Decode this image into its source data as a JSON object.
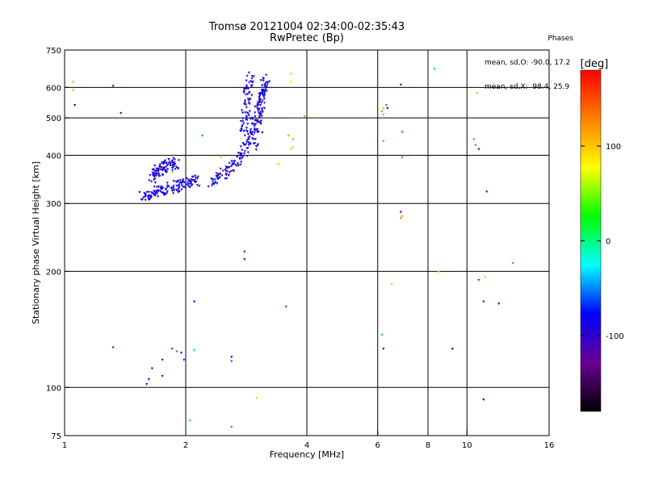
{
  "header": {
    "title": "Tromsø 20121004 02:34:00-02:35:43",
    "subtitle": "RwPretec (Bp)"
  },
  "phase_info": {
    "heading": "Phases",
    "line1": "mean, sd,O: -90.0, 17.2",
    "line2": "mean, sd,X:  98.4, 25.9"
  },
  "colorbar": {
    "label": "[deg]",
    "ticks": [
      {
        "value": 100,
        "label": "100"
      },
      {
        "value": 0,
        "label": "0"
      },
      {
        "value": -100,
        "label": "-100"
      }
    ],
    "range": [
      -180,
      180
    ],
    "stops": [
      "#000000",
      "#6a0090",
      "#0000ff",
      "#00ffff",
      "#00ff00",
      "#ffff00",
      "#ff8000",
      "#ff0000"
    ]
  },
  "chart_data": {
    "type": "scatter",
    "title": "Tromsø 20121004 02:34:00-02:35:43",
    "subtitle": "RwPretec (Bp)",
    "xlabel": "Frequency [MHz]",
    "ylabel": "Stationary phase Virtual Height [km]",
    "x_scale": "log",
    "y_scale": "log",
    "xlim": [
      1,
      16
    ],
    "ylim": [
      75,
      750
    ],
    "x_ticks": [
      1,
      2,
      4,
      6,
      8,
      10,
      16
    ],
    "x_tick_labels": [
      "1",
      "2",
      "4",
      "6",
      "8",
      "10",
      "16"
    ],
    "y_ticks": [
      75,
      100,
      200,
      300,
      400,
      500,
      600,
      750
    ],
    "y_tick_labels": [
      "75",
      "100",
      "200",
      "300",
      "400",
      "500",
      "600",
      "750"
    ],
    "x_gridlines": [
      2,
      4,
      6,
      8,
      10
    ],
    "y_gridlines": [
      100,
      200,
      300,
      400,
      500,
      600
    ],
    "color_encoding": "phase [deg]",
    "trace_O": {
      "description": "dense O-mode echo trace",
      "phase": -90,
      "segments": [
        {
          "x": [
            1.55,
            1.65,
            1.75,
            1.85,
            1.95,
            2.05,
            2.15
          ],
          "y": [
            312,
            318,
            325,
            330,
            336,
            342,
            345
          ]
        },
        {
          "x": [
            1.65,
            1.7,
            1.75,
            1.82,
            1.9
          ],
          "y": [
            350,
            362,
            372,
            378,
            382
          ]
        },
        {
          "x": [
            2.3,
            2.45,
            2.6,
            2.75,
            2.85,
            2.95,
            3.05,
            3.15
          ],
          "y": [
            340,
            355,
            372,
            395,
            430,
            480,
            540,
            600
          ]
        },
        {
          "x": [
            2.78,
            2.82,
            2.86,
            2.9
          ],
          "y": [
            450,
            520,
            590,
            640
          ]
        },
        {
          "x": [
            3.0,
            3.05,
            3.1,
            3.18
          ],
          "y": [
            420,
            500,
            580,
            640
          ]
        }
      ]
    },
    "points": [
      {
        "x": 1.05,
        "y": 620,
        "phase": 110
      },
      {
        "x": 1.05,
        "y": 590,
        "phase": 120
      },
      {
        "x": 1.06,
        "y": 540,
        "phase": -95
      },
      {
        "x": 1.32,
        "y": 605,
        "phase": -100
      },
      {
        "x": 1.38,
        "y": 515,
        "phase": -110
      },
      {
        "x": 1.85,
        "y": 360,
        "phase": 100
      },
      {
        "x": 2.2,
        "y": 450,
        "phase": -50
      },
      {
        "x": 2.45,
        "y": 395,
        "phase": 60
      },
      {
        "x": 3.65,
        "y": 650,
        "phase": 110
      },
      {
        "x": 3.65,
        "y": 620,
        "phase": 100
      },
      {
        "x": 3.6,
        "y": 450,
        "phase": 115
      },
      {
        "x": 3.7,
        "y": 440,
        "phase": 125
      },
      {
        "x": 3.65,
        "y": 415,
        "phase": 110
      },
      {
        "x": 3.7,
        "y": 420,
        "phase": 95
      },
      {
        "x": 3.8,
        "y": 500,
        "phase": 120
      },
      {
        "x": 3.95,
        "y": 505,
        "phase": 130
      },
      {
        "x": 3.4,
        "y": 380,
        "phase": 100
      },
      {
        "x": 2.8,
        "y": 225,
        "phase": -110
      },
      {
        "x": 2.8,
        "y": 215,
        "phase": -120
      },
      {
        "x": 3.55,
        "y": 162,
        "phase": -60
      },
      {
        "x": 2.1,
        "y": 167,
        "phase": -80
      },
      {
        "x": 1.32,
        "y": 127,
        "phase": -70
      },
      {
        "x": 1.85,
        "y": 126,
        "phase": -60
      },
      {
        "x": 1.9,
        "y": 124,
        "phase": -50
      },
      {
        "x": 1.95,
        "y": 123,
        "phase": -80
      },
      {
        "x": 2.1,
        "y": 125,
        "phase": -40
      },
      {
        "x": 1.98,
        "y": 118,
        "phase": -70
      },
      {
        "x": 1.75,
        "y": 118,
        "phase": -100
      },
      {
        "x": 1.65,
        "y": 112,
        "phase": -90
      },
      {
        "x": 1.75,
        "y": 107,
        "phase": -110
      },
      {
        "x": 1.62,
        "y": 105,
        "phase": -100
      },
      {
        "x": 1.6,
        "y": 102,
        "phase": -90
      },
      {
        "x": 2.6,
        "y": 120,
        "phase": -80
      },
      {
        "x": 2.6,
        "y": 117,
        "phase": -60
      },
      {
        "x": 2.05,
        "y": 82,
        "phase": -40
      },
      {
        "x": 2.6,
        "y": 79,
        "phase": 150
      },
      {
        "x": 3.0,
        "y": 94,
        "phase": 100
      },
      {
        "x": 6.15,
        "y": 520,
        "phase": 130
      },
      {
        "x": 6.2,
        "y": 530,
        "phase": 110
      },
      {
        "x": 6.3,
        "y": 540,
        "phase": -50
      },
      {
        "x": 6.35,
        "y": 530,
        "phase": -90
      },
      {
        "x": 6.2,
        "y": 510,
        "phase": 120
      },
      {
        "x": 6.2,
        "y": 435,
        "phase": 135
      },
      {
        "x": 6.85,
        "y": 610,
        "phase": -100
      },
      {
        "x": 6.9,
        "y": 460,
        "phase": 160
      },
      {
        "x": 6.9,
        "y": 395,
        "phase": 150
      },
      {
        "x": 6.85,
        "y": 285,
        "phase": -100
      },
      {
        "x": 6.9,
        "y": 278,
        "phase": 120
      },
      {
        "x": 6.85,
        "y": 275,
        "phase": 130
      },
      {
        "x": 6.5,
        "y": 185,
        "phase": 110
      },
      {
        "x": 6.15,
        "y": 137,
        "phase": -40
      },
      {
        "x": 6.2,
        "y": 126,
        "phase": -80
      },
      {
        "x": 8.3,
        "y": 670,
        "phase": -40
      },
      {
        "x": 8.5,
        "y": 199,
        "phase": 90
      },
      {
        "x": 9.2,
        "y": 126,
        "phase": -80
      },
      {
        "x": 10.6,
        "y": 580,
        "phase": 110
      },
      {
        "x": 10.4,
        "y": 440,
        "phase": 140
      },
      {
        "x": 10.5,
        "y": 425,
        "phase": 150
      },
      {
        "x": 10.7,
        "y": 415,
        "phase": -150
      },
      {
        "x": 11.2,
        "y": 322,
        "phase": -100
      },
      {
        "x": 10.7,
        "y": 190,
        "phase": -60
      },
      {
        "x": 11.1,
        "y": 193,
        "phase": 100
      },
      {
        "x": 11.0,
        "y": 167,
        "phase": -70
      },
      {
        "x": 12.0,
        "y": 165,
        "phase": -150
      },
      {
        "x": 13.0,
        "y": 210,
        "phase": 145
      },
      {
        "x": 11.0,
        "y": 93,
        "phase": -80
      }
    ]
  }
}
